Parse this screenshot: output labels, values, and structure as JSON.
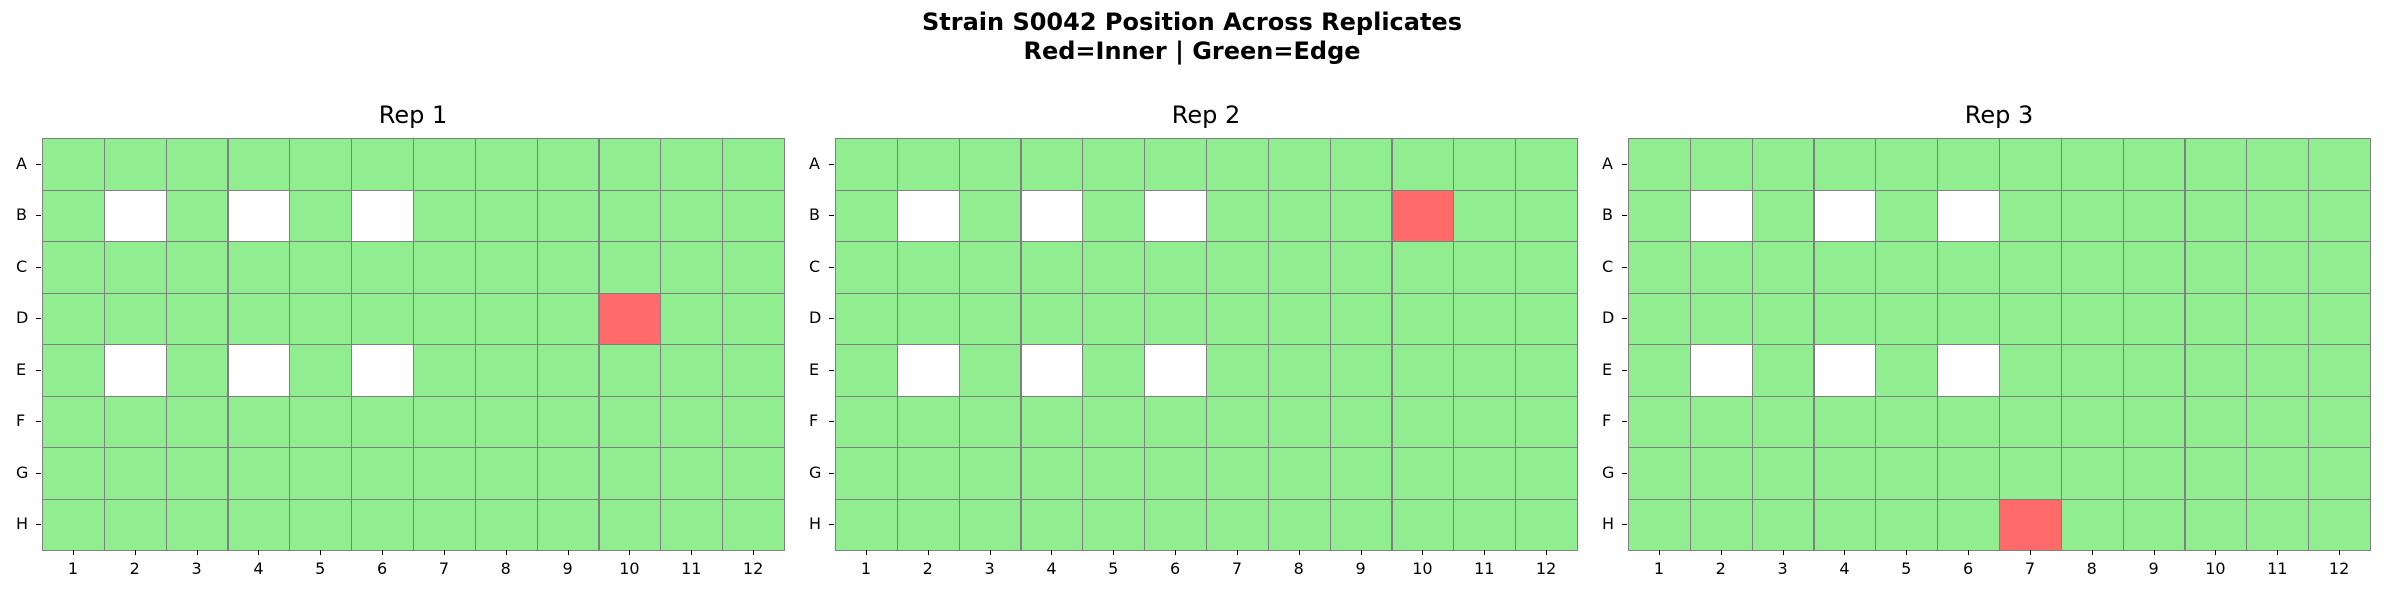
{
  "title": "Strain S0042 Position Across Replicates",
  "subtitle": "Red=Inner | Green=Edge",
  "chart_data": {
    "type": "heatmap",
    "title": "Strain S0042 Position Across Replicates",
    "subtitle": "Red=Inner | Green=Edge",
    "rows": [
      "A",
      "B",
      "C",
      "D",
      "E",
      "F",
      "G",
      "H"
    ],
    "columns": [
      "1",
      "2",
      "3",
      "4",
      "5",
      "6",
      "7",
      "8",
      "9",
      "10",
      "11",
      "12"
    ],
    "colors": {
      "edge": "#90ee90",
      "inner": "#ff6b6b",
      "empty": "#ffffff",
      "grid": "#808080"
    },
    "legend": {
      "red": "Inner",
      "green": "Edge"
    },
    "panels": [
      {
        "title": "Rep 1",
        "empty_wells": [
          "B2",
          "B4",
          "B6",
          "E2",
          "E4",
          "E6"
        ],
        "inner_wells": [
          "D10"
        ]
      },
      {
        "title": "Rep 2",
        "empty_wells": [
          "B2",
          "B4",
          "B6",
          "E2",
          "E4",
          "E6"
        ],
        "inner_wells": [
          "B10"
        ]
      },
      {
        "title": "Rep 3",
        "empty_wells": [
          "B2",
          "B4",
          "B6",
          "E2",
          "E4",
          "E6"
        ],
        "inner_wells": [
          "H7"
        ]
      }
    ]
  }
}
